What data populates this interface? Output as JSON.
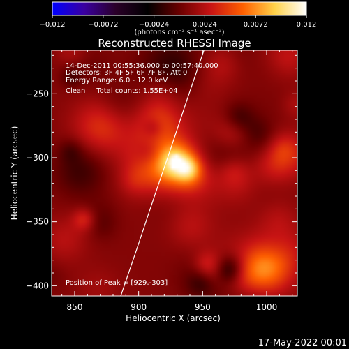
{
  "chart_data": {
    "type": "heatmap",
    "title": "Reconstructed RHESSI Image",
    "xlabel": "Heliocentric X (arcsec)",
    "ylabel": "Heliocentric Y (arcsec)",
    "xlim": [
      832,
      1024
    ],
    "ylim": [
      -408,
      -216
    ],
    "x_ticks": [
      {
        "value": 850,
        "label": "850"
      },
      {
        "value": 900,
        "label": "900"
      },
      {
        "value": 950,
        "label": "950"
      },
      {
        "value": 1000,
        "label": "1000"
      }
    ],
    "y_ticks": [
      {
        "value": -250,
        "label": "−250"
      },
      {
        "value": -300,
        "label": "−300"
      },
      {
        "value": -350,
        "label": "−350"
      },
      {
        "value": -400,
        "label": "−400"
      }
    ],
    "colorbar": {
      "range": [
        -0.012,
        0.012
      ],
      "ticks": [
        {
          "value": -0.012,
          "label": "−0.012"
        },
        {
          "value": -0.0072,
          "label": "−0.0072"
        },
        {
          "value": -0.0024,
          "label": "−0.0024"
        },
        {
          "value": 0.0024,
          "label": "0.0024"
        },
        {
          "value": 0.0072,
          "label": "0.0072"
        },
        {
          "value": 0.012,
          "label": "0.012"
        }
      ],
      "units": "(photons cm⁻² s⁻¹ asec⁻²)",
      "colormap": [
        "#0000ff",
        "#3a00a0",
        "#2a0028",
        "#000000",
        "#6a0000",
        "#c81414",
        "#ff6000",
        "#ffd24a",
        "#ffffff"
      ]
    },
    "annotations": [
      "14-Dec-2011 00:55:36.000 to 00:57:40.000",
      "Detectors: 3F 4F 5F 6F 7F 8F, Att 0",
      "Energy Range: 6.0 - 12.0 keV",
      "Clean     Total counts: 1.55E+04"
    ],
    "peak_label": "Position of Peak = [929,-303]",
    "peak": {
      "x": 929,
      "y": -303,
      "value": 0.012
    },
    "limb_curve": [
      [
        886,
        -408
      ],
      [
        899,
        -370
      ],
      [
        912,
        -331
      ],
      [
        925,
        -293
      ],
      [
        938,
        -254
      ],
      [
        951,
        -216
      ]
    ],
    "limb_color": "#ffffff"
  },
  "footer": {
    "date": "17-May-2022 00:01"
  }
}
